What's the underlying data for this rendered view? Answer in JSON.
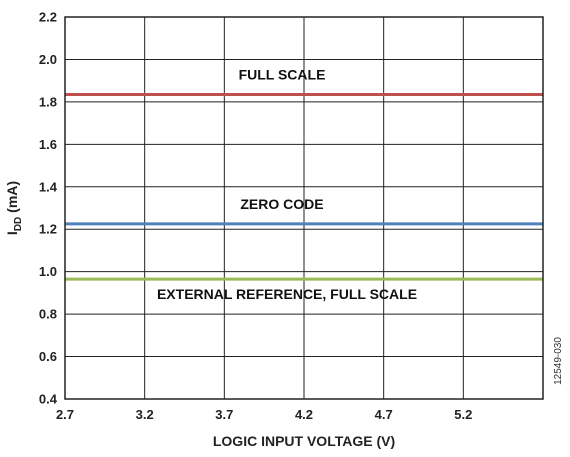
{
  "chart_data": {
    "type": "line",
    "title": "",
    "xlabel": "LOGIC INPUT VOLTAGE (V)",
    "ylabel_main": "I",
    "ylabel_sub": "DD",
    "ylabel_unit": " (mA)",
    "xlim": [
      2.7,
      5.7
    ],
    "ylim": [
      0.4,
      2.2
    ],
    "x_ticks": [
      2.7,
      3.2,
      3.7,
      4.2,
      4.7,
      5.2
    ],
    "x_tick_labels": [
      "2.7",
      "3.2",
      "3.7",
      "4.2",
      "4.7",
      "5.2"
    ],
    "y_ticks": [
      0.4,
      0.6,
      0.8,
      1.0,
      1.2,
      1.4,
      1.6,
      1.8,
      2.0,
      2.2
    ],
    "y_tick_labels": [
      "0.4",
      "0.6",
      "0.8",
      "1.0",
      "1.2",
      "1.4",
      "1.6",
      "1.8",
      "2.0",
      "2.2"
    ],
    "grid": true,
    "series": [
      {
        "name": "FULL SCALE",
        "color": "#c0504d",
        "x": [
          2.7,
          5.7
        ],
        "values": [
          1.835,
          1.835
        ]
      },
      {
        "name": "ZERO CODE",
        "color": "#4f81bd",
        "x": [
          2.7,
          5.7
        ],
        "values": [
          1.225,
          1.225
        ]
      },
      {
        "name": "EXTERNAL REFERENCE, FULL SCALE",
        "color": "#9bbb59",
        "x": [
          2.7,
          5.7
        ],
        "values": [
          0.965,
          0.965
        ]
      }
    ],
    "figure_id": "12549-030"
  }
}
